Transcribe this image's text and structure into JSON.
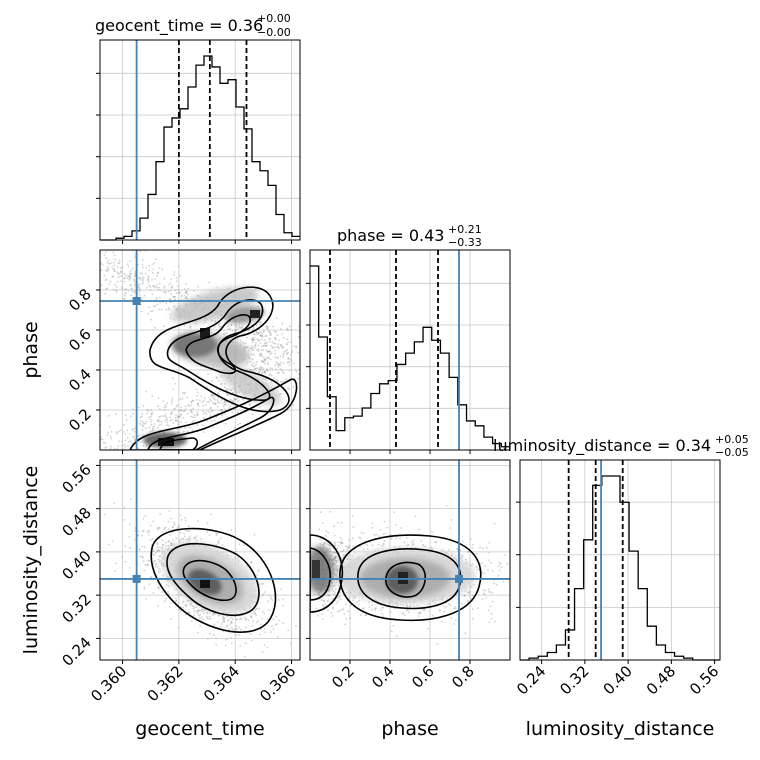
{
  "chart_data": {
    "type": "corner",
    "parameters": [
      "geocent_time",
      "phase",
      "luminosity_distance"
    ],
    "titles": [
      {
        "label": "geocent_time = 0.36",
        "sup": "+0.00",
        "sub": "−0.00"
      },
      {
        "label": "phase = 0.43",
        "sup": "+0.21",
        "sub": "−0.33"
      },
      {
        "label": "luminosity_distance = 0.34",
        "sup": "+0.05",
        "sub": "−0.05"
      }
    ],
    "axis_labels": {
      "x": [
        "geocent_time",
        "phase",
        "luminosity_distance"
      ],
      "y": [
        "phase",
        "luminosity_distance"
      ]
    },
    "ranges": [
      [
        0.3592,
        0.3663
      ],
      [
        0.0,
        1.0
      ],
      [
        0.2,
        0.57
      ]
    ],
    "x_ticks": [
      {
        "values": [
          0.36,
          0.362,
          0.364,
          0.366
        ],
        "labels": [
          "0.360",
          "0.362",
          "0.364",
          "0.366"
        ]
      },
      {
        "values": [
          0.2,
          0.4,
          0.6,
          0.8
        ],
        "labels": [
          "0.2",
          "0.4",
          "0.6",
          "0.8"
        ]
      },
      {
        "values": [
          0.24,
          0.32,
          0.4,
          0.48,
          0.56
        ],
        "labels": [
          "0.24",
          "0.32",
          "0.40",
          "0.48",
          "0.56"
        ]
      }
    ],
    "y_ticks": {
      "phase": {
        "values": [
          0.2,
          0.4,
          0.6,
          0.8
        ],
        "labels": [
          "0.2",
          "0.4",
          "0.6",
          "0.8"
        ]
      },
      "luminosity_distance": {
        "values": [
          0.24,
          0.32,
          0.4,
          0.48,
          0.56
        ],
        "labels": [
          "0.24",
          "0.32",
          "0.40",
          "0.48",
          "0.56"
        ]
      }
    },
    "truths": {
      "geocent_time": 0.3605,
      "phase": 0.745,
      "luminosity_distance": 0.35
    },
    "quantiles": {
      "geocent_time": [
        0.362,
        0.3631,
        0.3644
      ],
      "phase": [
        0.1,
        0.43,
        0.64
      ],
      "luminosity_distance": [
        0.29,
        0.34,
        0.39
      ]
    },
    "histograms": {
      "geocent_time": {
        "counts": [
          0,
          0,
          1,
          2,
          5,
          12,
          25,
          43,
          62,
          67,
          72,
          84,
          96,
          101,
          95,
          86,
          88,
          73,
          61,
          43,
          38,
          30,
          14,
          4,
          2
        ]
      },
      "phase": {
        "counts": [
          114,
          70,
          33,
          12,
          20,
          21,
          26,
          35,
          41,
          43,
          53,
          60,
          67,
          76,
          68,
          60,
          45,
          28,
          18,
          15,
          8,
          4,
          2
        ]
      },
      "luminosity_distance": {
        "counts": [
          0,
          1,
          2,
          4,
          8,
          16,
          38,
          64,
          93,
          98,
          98,
          84,
          58,
          38,
          18,
          8,
          4,
          2,
          1,
          0,
          0,
          0
        ]
      }
    },
    "grid": true,
    "style": {
      "hist_color": "#000000",
      "truth_color": "#4682b4",
      "contour_color": "#000000",
      "scatter_color": "#9a9a9a"
    }
  }
}
